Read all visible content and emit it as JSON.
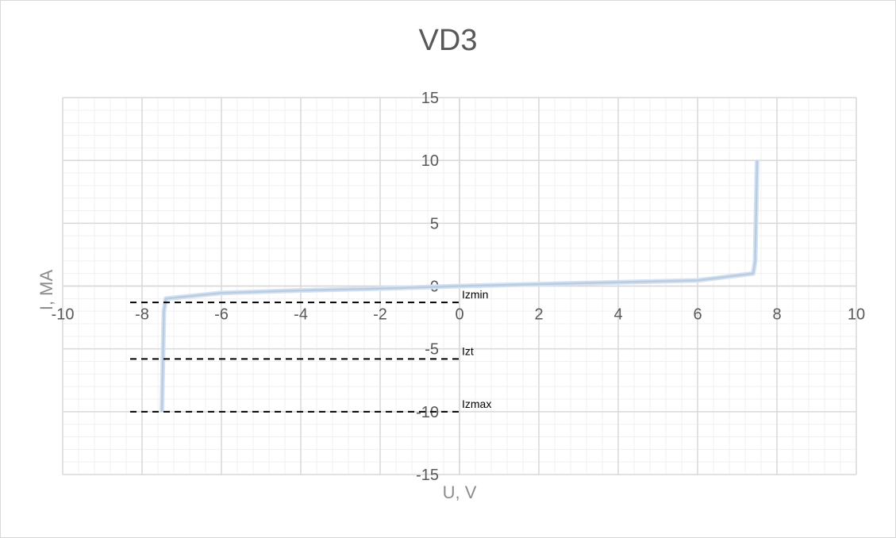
{
  "chart_data": {
    "type": "line",
    "title": "VD3",
    "xlabel": "U, V",
    "ylabel": "I, MA",
    "xlim": [
      -10,
      10
    ],
    "ylim": [
      -15,
      15
    ],
    "x_ticks": [
      -10,
      -8,
      -6,
      -4,
      -2,
      0,
      2,
      4,
      6,
      8,
      10
    ],
    "y_ticks": [
      -15,
      -10,
      -5,
      0,
      5,
      10,
      15
    ],
    "grid": true,
    "series": [
      {
        "x": [
          -7.5,
          -7.45,
          -7.4,
          -6,
          -4,
          -2,
          0,
          2,
          4,
          6,
          7.4,
          7.45,
          7.5
        ],
        "y": [
          -10,
          -2,
          -1,
          -0.55,
          -0.35,
          -0.2,
          0,
          0.15,
          0.3,
          0.45,
          1,
          2,
          10
        ],
        "color": "#b8cce4"
      }
    ],
    "annotations": [
      {
        "label": "Izmin",
        "y": -1.3,
        "x_start": -8.3,
        "x_end": 0
      },
      {
        "label": "Izt",
        "y": -5.8,
        "x_start": -8.3,
        "x_end": 0
      },
      {
        "label": "Izmax",
        "y": -10,
        "x_start": -8.3,
        "x_end": 0
      }
    ]
  }
}
